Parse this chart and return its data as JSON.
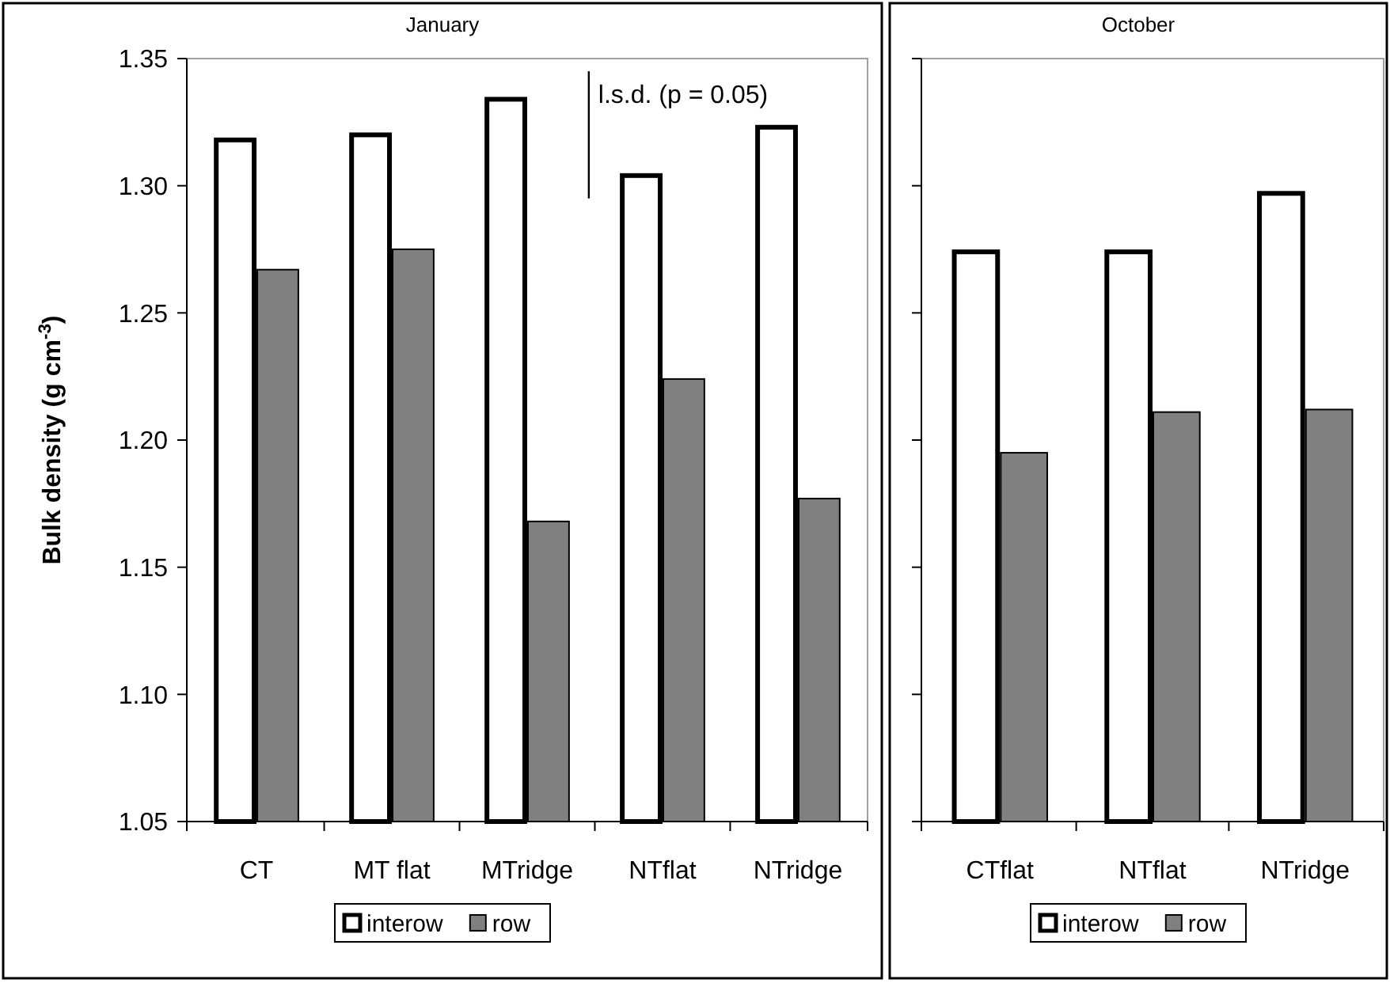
{
  "chart_data": [
    {
      "type": "bar",
      "title": "January",
      "ylabel": "Bulk density (g cm$^{-3}$)",
      "categories": [
        "CT",
        "MT flat",
        "MTridge",
        "NTflat",
        "NTridge"
      ],
      "series": [
        {
          "name": "interow",
          "color": "#ffffff",
          "values": [
            1.318,
            1.32,
            1.334,
            1.304,
            1.323
          ]
        },
        {
          "name": "row",
          "color": "#808080",
          "values": [
            1.267,
            1.275,
            1.168,
            1.224,
            1.177
          ]
        }
      ],
      "ylim": [
        1.05,
        1.35
      ],
      "yticks": [
        1.05,
        {
          "value": 1.1,
          "label": "1.10"
        },
        1.15,
        {
          "value": 1.2,
          "label": "1.20"
        },
        1.25,
        {
          "value": 1.3,
          "label": "1.30"
        },
        1.35
      ],
      "annotations": [
        "l.s.d. (p = 0.05)"
      ],
      "legend": "bottom"
    },
    {
      "type": "bar",
      "title": "October",
      "categories": [
        "CTflat",
        "NTflat",
        "NTridge"
      ],
      "series": [
        {
          "name": "interow",
          "color": "#ffffff",
          "values": [
            1.274,
            1.274,
            1.297
          ]
        },
        {
          "name": "row",
          "color": "#808080",
          "values": [
            1.195,
            1.211,
            1.212
          ]
        }
      ],
      "ylim": [
        1.05,
        1.35
      ],
      "yticks": [
        {
          "value": 1.05,
          "label": null
        },
        {
          "value": 1.1,
          "label": null
        },
        {
          "value": 1.15,
          "label": null
        },
        {
          "value": 1.2,
          "label": null
        },
        {
          "value": 1.25,
          "label": null
        },
        {
          "value": 1.3,
          "label": null
        },
        {
          "value": 1.35,
          "label": null
        }
      ],
      "tick_labels": "x",
      "legend": "bottom"
    }
  ]
}
